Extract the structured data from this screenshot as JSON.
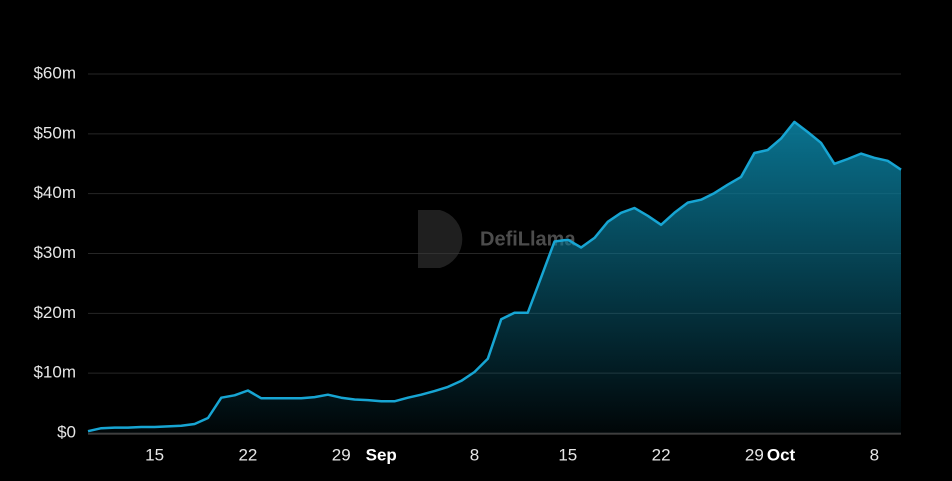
{
  "chart_data": {
    "type": "area",
    "watermark": "DefiLlama",
    "color": "#17a5d3",
    "grid": true,
    "categories": [
      null,
      null,
      null,
      null,
      null,
      "15",
      null,
      null,
      null,
      null,
      null,
      null,
      "22",
      null,
      null,
      null,
      null,
      null,
      null,
      "29",
      null,
      null,
      "Sep",
      null,
      null,
      null,
      null,
      null,
      null,
      "8",
      null,
      null,
      null,
      null,
      null,
      null,
      "15",
      null,
      null,
      null,
      null,
      null,
      null,
      "22",
      null,
      null,
      null,
      null,
      null,
      null,
      "29",
      null,
      "Oct",
      null,
      null,
      null,
      null,
      null,
      null,
      "8",
      null,
      null
    ],
    "values": [
      0.3,
      0.8,
      0.9,
      0.9,
      1.0,
      1.0,
      1.1,
      1.2,
      1.5,
      2.5,
      5.9,
      6.3,
      7.1,
      5.8,
      5.8,
      5.8,
      5.8,
      6.0,
      6.4,
      5.9,
      5.6,
      5.5,
      5.3,
      5.3,
      5.9,
      6.4,
      7.0,
      7.7,
      8.7,
      10.2,
      12.4,
      19.0,
      20.1,
      20.1,
      26.0,
      32.0,
      32.3,
      31.0,
      32.6,
      35.3,
      36.8,
      37.6,
      36.3,
      34.8,
      36.8,
      38.5,
      39.0,
      40.1,
      41.5,
      42.8,
      46.8,
      47.3,
      49.2,
      52.0,
      50.3,
      48.5,
      45.0,
      45.8,
      46.7,
      46.0,
      45.5,
      44.0
    ],
    "ylim": [
      0,
      60
    ],
    "yticks": [
      {
        "value": 0,
        "label": "$0"
      },
      {
        "value": 10,
        "label": "$10m"
      },
      {
        "value": 20,
        "label": "$20m"
      },
      {
        "value": 30,
        "label": "$30m"
      },
      {
        "value": 40,
        "label": "$40m"
      },
      {
        "value": 50,
        "label": "$50m"
      },
      {
        "value": 60,
        "label": "$60m"
      }
    ]
  }
}
